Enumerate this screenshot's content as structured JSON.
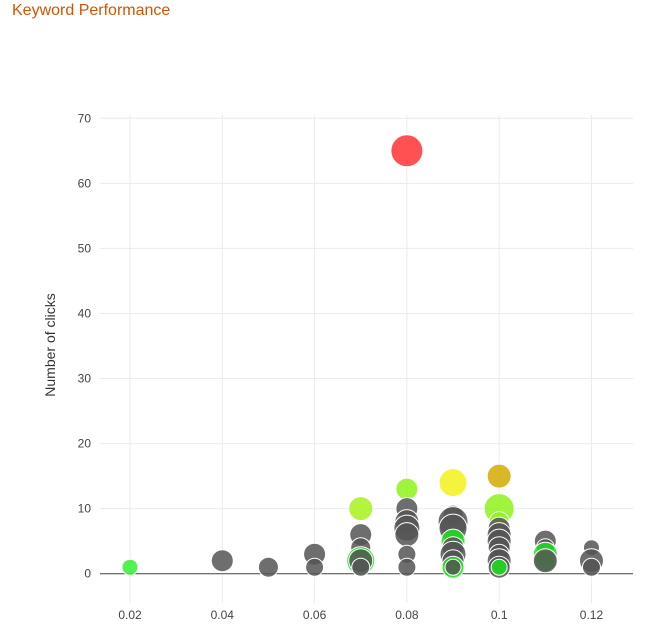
{
  "chart_data": {
    "type": "scatter",
    "title": "Keyword Performance",
    "xlabel": "",
    "ylabel": "Number of clicks",
    "xlim": [
      0.0135,
      0.129
    ],
    "ylim": [
      -4.5,
      70.5
    ],
    "xticks": [
      "0.02",
      "0.04",
      "0.06",
      "0.08",
      "0.1",
      "0.12"
    ],
    "xtick_values": [
      0.02,
      0.04,
      0.06,
      0.08,
      0.1,
      0.12
    ],
    "yticks": [
      "0",
      "10",
      "20",
      "30",
      "40",
      "50",
      "60",
      "70"
    ],
    "ytick_values": [
      0,
      10,
      20,
      30,
      40,
      50,
      60,
      70
    ],
    "grid": true,
    "colors": {
      "grey": "#555555",
      "red": "#ff3333",
      "yellow": "#f2f21a",
      "gold": "#d4aa00",
      "lightgreen": "#8ef21a",
      "lime": "#a8f21a",
      "green": "#1fe01f",
      "brightgreen": "#33ee33"
    },
    "points": [
      {
        "x": 0.02,
        "y": 1,
        "size": 8,
        "color": "brightgreen"
      },
      {
        "x": 0.04,
        "y": 2,
        "size": 11,
        "color": "grey"
      },
      {
        "x": 0.05,
        "y": 1,
        "size": 10,
        "color": "grey"
      },
      {
        "x": 0.06,
        "y": 3,
        "size": 11,
        "color": "grey"
      },
      {
        "x": 0.06,
        "y": 1,
        "size": 9,
        "color": "grey"
      },
      {
        "x": 0.07,
        "y": 10,
        "size": 12,
        "color": "lime"
      },
      {
        "x": 0.07,
        "y": 6,
        "size": 11,
        "color": "grey"
      },
      {
        "x": 0.07,
        "y": 4,
        "size": 10,
        "color": "grey"
      },
      {
        "x": 0.07,
        "y": 2,
        "size": 14,
        "color": "green"
      },
      {
        "x": 0.07,
        "y": 2,
        "size": 12,
        "color": "grey"
      },
      {
        "x": 0.07,
        "y": 1,
        "size": 9,
        "color": "grey"
      },
      {
        "x": 0.08,
        "y": 65,
        "size": 16,
        "color": "red"
      },
      {
        "x": 0.08,
        "y": 13,
        "size": 11,
        "color": "lightgreen"
      },
      {
        "x": 0.08,
        "y": 10,
        "size": 11,
        "color": "grey"
      },
      {
        "x": 0.08,
        "y": 8,
        "size": 12,
        "color": "grey"
      },
      {
        "x": 0.08,
        "y": 7,
        "size": 13,
        "color": "grey"
      },
      {
        "x": 0.08,
        "y": 6,
        "size": 12,
        "color": "grey"
      },
      {
        "x": 0.08,
        "y": 3,
        "size": 9,
        "color": "grey"
      },
      {
        "x": 0.08,
        "y": 1,
        "size": 9,
        "color": "grey"
      },
      {
        "x": 0.09,
        "y": 14,
        "size": 14,
        "color": "yellow"
      },
      {
        "x": 0.09,
        "y": 9,
        "size": 10,
        "color": "grey"
      },
      {
        "x": 0.09,
        "y": 8,
        "size": 15,
        "color": "grey"
      },
      {
        "x": 0.09,
        "y": 7,
        "size": 14,
        "color": "grey"
      },
      {
        "x": 0.09,
        "y": 5,
        "size": 12,
        "color": "green"
      },
      {
        "x": 0.09,
        "y": 4,
        "size": 11,
        "color": "grey"
      },
      {
        "x": 0.09,
        "y": 3,
        "size": 13,
        "color": "grey"
      },
      {
        "x": 0.09,
        "y": 2,
        "size": 11,
        "color": "grey"
      },
      {
        "x": 0.09,
        "y": 1,
        "size": 11,
        "color": "green"
      },
      {
        "x": 0.09,
        "y": 1,
        "size": 8,
        "color": "grey"
      },
      {
        "x": 0.1,
        "y": 15,
        "size": 12,
        "color": "gold"
      },
      {
        "x": 0.1,
        "y": 10,
        "size": 15,
        "color": "lightgreen"
      },
      {
        "x": 0.1,
        "y": 8,
        "size": 10,
        "color": "lightgreen"
      },
      {
        "x": 0.1,
        "y": 7,
        "size": 11,
        "color": "grey"
      },
      {
        "x": 0.1,
        "y": 6,
        "size": 12,
        "color": "grey"
      },
      {
        "x": 0.1,
        "y": 5,
        "size": 12,
        "color": "grey"
      },
      {
        "x": 0.1,
        "y": 4,
        "size": 11,
        "color": "grey"
      },
      {
        "x": 0.1,
        "y": 3,
        "size": 10,
        "color": "grey"
      },
      {
        "x": 0.1,
        "y": 2,
        "size": 12,
        "color": "grey"
      },
      {
        "x": 0.1,
        "y": 1,
        "size": 11,
        "color": "grey"
      },
      {
        "x": 0.1,
        "y": 1,
        "size": 8,
        "color": "green"
      },
      {
        "x": 0.11,
        "y": 5,
        "size": 11,
        "color": "grey"
      },
      {
        "x": 0.11,
        "y": 4,
        "size": 9,
        "color": "grey"
      },
      {
        "x": 0.11,
        "y": 3,
        "size": 12,
        "color": "green"
      },
      {
        "x": 0.11,
        "y": 2,
        "size": 11,
        "color": "green"
      },
      {
        "x": 0.11,
        "y": 2,
        "size": 12,
        "color": "grey"
      },
      {
        "x": 0.12,
        "y": 4,
        "size": 8,
        "color": "grey"
      },
      {
        "x": 0.12,
        "y": 2,
        "size": 12,
        "color": "grey"
      },
      {
        "x": 0.12,
        "y": 1,
        "size": 9,
        "color": "grey"
      }
    ]
  }
}
